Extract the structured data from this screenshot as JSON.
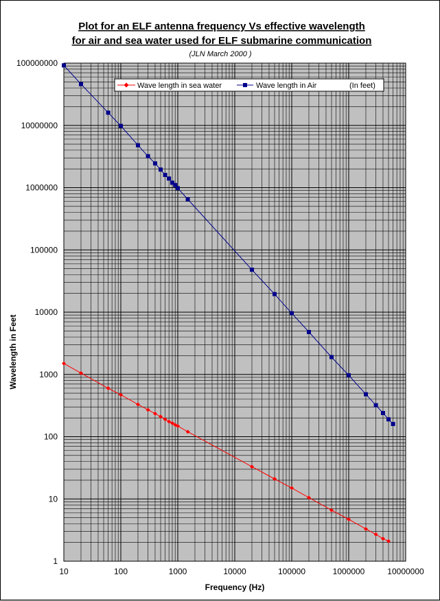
{
  "chart_data": {
    "type": "line",
    "title_line1": "Plot for an ELF antenna frequency Vs effective wavelength",
    "title_line2": "for air and sea water used for ELF submarine communication",
    "subtitle": "(JLN March 2000 )",
    "xlabel": "Frequency (Hz)",
    "ylabel": "Wavelength in Feet",
    "x_scale": "log",
    "y_scale": "log",
    "xlim": [
      10,
      10000000
    ],
    "ylim": [
      1,
      100000000
    ],
    "x_tick_labels": [
      "10",
      "100",
      "1000",
      "10000",
      "100000",
      "1000000",
      "10000000"
    ],
    "y_tick_labels": [
      "1",
      "10",
      "100",
      "1000",
      "10000",
      "100000",
      "1000000",
      "10000000",
      "100000000"
    ],
    "grid": true,
    "plot_background": "#c0c0c0",
    "legend_position": "top-right",
    "legend_note": "(In feet)",
    "series": [
      {
        "name": "Wave length in sea water",
        "color": "#ff0000",
        "marker": "diamond",
        "x": [
          10,
          20,
          60,
          100,
          200,
          300,
          400,
          500,
          600,
          700,
          800,
          900,
          1000,
          1500,
          20000,
          50000,
          100000,
          200000,
          500000,
          1000000,
          2000000,
          3000000,
          4000000,
          5000000
        ],
        "y": [
          1500,
          1050,
          600,
          470,
          330,
          270,
          235,
          210,
          190,
          175,
          165,
          155,
          148,
          120,
          33,
          21,
          15,
          10.5,
          6.6,
          4.7,
          3.3,
          2.7,
          2.3,
          2.1
        ]
      },
      {
        "name": "Wave length in Air",
        "color": "#00008b",
        "marker": "square",
        "x": [
          10,
          20,
          60,
          100,
          200,
          300,
          400,
          500,
          600,
          700,
          800,
          900,
          1000,
          1500,
          20000,
          50000,
          100000,
          200000,
          500000,
          1000000,
          2000000,
          3000000,
          4000000,
          5000000,
          6000000
        ],
        "y": [
          92000000,
          46000000,
          16000000,
          9800000,
          4800000,
          3200000,
          2450000,
          1950000,
          1600000,
          1400000,
          1200000,
          1100000,
          980000,
          650000,
          48000,
          19500,
          9600,
          4800,
          1900,
          970,
          480,
          320,
          240,
          190,
          160
        ]
      }
    ]
  }
}
